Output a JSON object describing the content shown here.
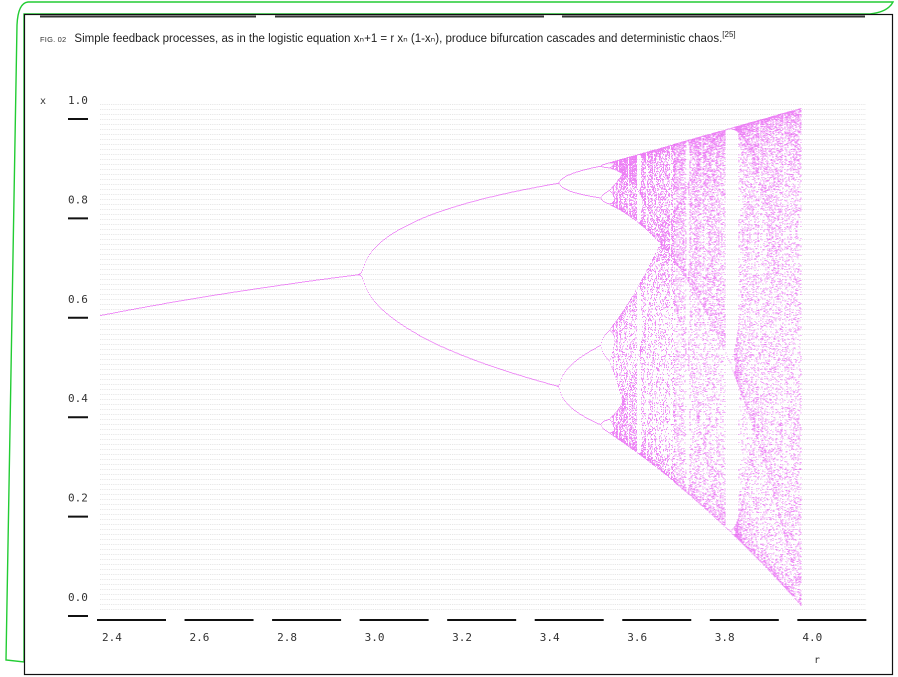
{
  "caption": {
    "fig_label": "FIG. 02",
    "text": "Simple feedback processes, as in the logistic equation xₙ+1 = r xₙ (1-xₙ), produce bifurcation cascades and deterministic chaos.",
    "reference": "[25]"
  },
  "chart_data": {
    "type": "scatter",
    "title": "",
    "xlabel": "r",
    "ylabel": "x",
    "xlim": [
      2.4,
      4.15
    ],
    "ylim": [
      0.0,
      1.0
    ],
    "x_ticks": [
      "2.4",
      "2.6",
      "2.8",
      "3.0",
      "3.2",
      "3.4",
      "3.6",
      "3.8",
      "4.0"
    ],
    "y_ticks": [
      "0.0",
      "0.2",
      "0.4",
      "0.6",
      "0.8",
      "1.0"
    ],
    "grid": true,
    "legend": "none",
    "series": [
      {
        "kind": "logistic-map bifurcation (attractor points)",
        "r_range": [
          2.4,
          4.15
        ],
        "x": [
          2.4,
          2.6,
          2.8,
          3.0,
          3.2,
          3.4,
          3.5,
          3.6,
          3.7,
          3.8,
          3.9,
          4.0
        ],
        "y_fixed_point_or_range": [
          [
            0.583
          ],
          [
            0.615
          ],
          [
            0.643
          ],
          [
            0.667
          ],
          [
            0.513,
            0.799
          ],
          [
            0.452,
            0.842
          ],
          [
            0.383,
            0.827,
            0.501,
            0.875
          ],
          [
            0.32,
            0.9
          ],
          [
            0.23,
            0.925
          ],
          [
            0.18,
            0.95
          ],
          [
            0.15,
            0.975
          ],
          [
            0.0,
            1.0
          ]
        ]
      }
    ],
    "colors": {
      "points": "#dd00ee",
      "grid": "#cfcfcf",
      "frame": "#111111",
      "border_accent": "#22cc33"
    }
  }
}
